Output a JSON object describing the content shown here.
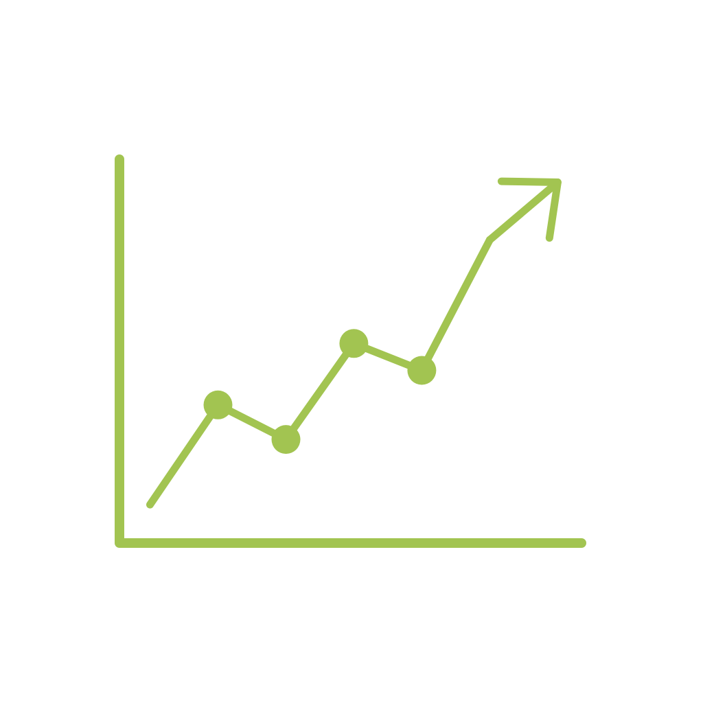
{
  "chart_data": {
    "type": "line",
    "title": "",
    "xlabel": "",
    "ylabel": "",
    "x": [
      0,
      1,
      2,
      3,
      4,
      5,
      6
    ],
    "series": [
      {
        "values": [
          1.0,
          3.6,
          2.7,
          5.2,
          4.5,
          7.9,
          9.4
        ]
      }
    ],
    "markers_on": [
      1,
      2,
      3,
      4
    ],
    "ends_with_arrow": true,
    "xlim": [
      -0.45,
      6.35
    ],
    "ylim": [
      0,
      10
    ],
    "grid": false,
    "legend": "none",
    "tick_labels": false,
    "colors": {
      "accent": "#a2c451",
      "background": "#ffffff"
    }
  }
}
